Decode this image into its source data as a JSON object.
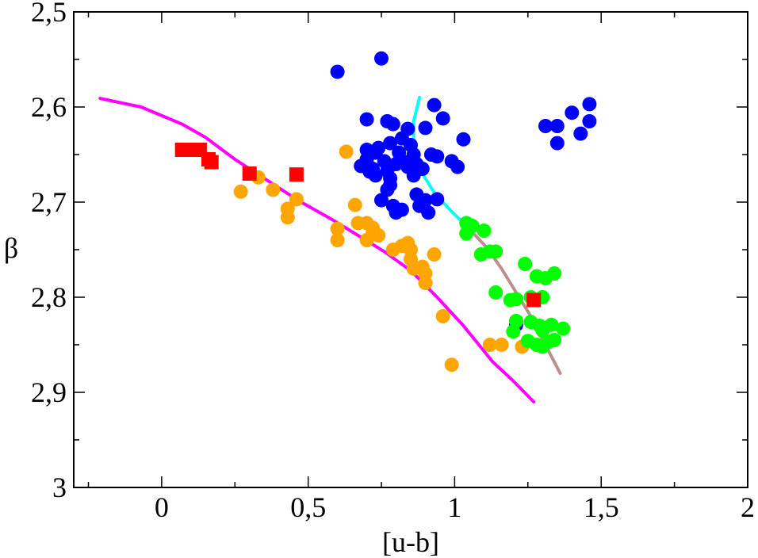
{
  "chart_data": {
    "type": "scatter",
    "title": "",
    "xlabel": "[u-b]",
    "ylabel": "β",
    "xlim": [
      -0.3,
      2.0
    ],
    "ylim": [
      3.0,
      2.5
    ],
    "y_inverted": true,
    "grid": false,
    "xticks": [
      {
        "value": 0,
        "label": "0"
      },
      {
        "value": 0.5,
        "label": "0,5"
      },
      {
        "value": 1,
        "label": "1"
      },
      {
        "value": 1.5,
        "label": "1,5"
      },
      {
        "value": 2,
        "label": "2"
      }
    ],
    "yticks": [
      {
        "value": 2.5,
        "label": "2,5"
      },
      {
        "value": 2.6,
        "label": "2,6"
      },
      {
        "value": 2.7,
        "label": "2,7"
      },
      {
        "value": 2.8,
        "label": "2,8"
      },
      {
        "value": 2.9,
        "label": "2,9"
      },
      {
        "value": 3.0,
        "label": "3"
      }
    ],
    "x_minor_step": 0.25,
    "y_minor_step": 0.05,
    "series": [
      {
        "name": "magenta-line",
        "kind": "line",
        "color": "#ff00ff",
        "points": [
          [
            -0.21,
            2.591
          ],
          [
            -0.07,
            2.6
          ],
          [
            0.07,
            2.618
          ],
          [
            0.15,
            2.632
          ],
          [
            0.25,
            2.655
          ],
          [
            0.36,
            2.677
          ],
          [
            0.47,
            2.699
          ],
          [
            0.58,
            2.718
          ],
          [
            0.67,
            2.735
          ],
          [
            0.76,
            2.752
          ],
          [
            0.85,
            2.772
          ],
          [
            0.94,
            2.8
          ],
          [
            1.03,
            2.83
          ],
          [
            1.13,
            2.868
          ],
          [
            1.2,
            2.888
          ],
          [
            1.27,
            2.91
          ]
        ]
      },
      {
        "name": "cyan-line",
        "kind": "line",
        "color": "#00ffff",
        "points": [
          [
            0.88,
            2.59
          ],
          [
            0.86,
            2.615
          ],
          [
            0.86,
            2.64
          ],
          [
            0.88,
            2.665
          ],
          [
            0.93,
            2.69
          ],
          [
            0.99,
            2.71
          ],
          [
            1.05,
            2.728
          ]
        ]
      },
      {
        "name": "tan-line",
        "kind": "line",
        "color": "#bc8f8f",
        "points": [
          [
            1.05,
            2.728
          ],
          [
            1.11,
            2.748
          ],
          [
            1.16,
            2.77
          ],
          [
            1.21,
            2.795
          ],
          [
            1.26,
            2.82
          ],
          [
            1.3,
            2.845
          ],
          [
            1.33,
            2.862
          ],
          [
            1.36,
            2.88
          ]
        ]
      },
      {
        "name": "blue-circles",
        "kind": "circle",
        "color": "#0000ff",
        "points": [
          [
            0.6,
            2.563
          ],
          [
            0.75,
            2.549
          ],
          [
            0.7,
            2.613
          ],
          [
            0.77,
            2.615
          ],
          [
            0.79,
            2.618
          ],
          [
            0.84,
            2.623
          ],
          [
            0.9,
            2.622
          ],
          [
            0.93,
            2.598
          ],
          [
            0.96,
            2.612
          ],
          [
            0.82,
            2.633
          ],
          [
            0.78,
            2.638
          ],
          [
            0.85,
            2.64
          ],
          [
            0.7,
            2.645
          ],
          [
            0.74,
            2.643
          ],
          [
            0.73,
            2.648
          ],
          [
            0.81,
            2.648
          ],
          [
            0.86,
            2.65
          ],
          [
            0.92,
            2.65
          ],
          [
            0.94,
            2.652
          ],
          [
            0.7,
            2.655
          ],
          [
            0.76,
            2.657
          ],
          [
            0.8,
            2.66
          ],
          [
            0.83,
            2.658
          ],
          [
            0.87,
            2.66
          ],
          [
            0.68,
            2.662
          ],
          [
            0.72,
            2.665
          ],
          [
            0.77,
            2.667
          ],
          [
            0.84,
            2.663
          ],
          [
            0.89,
            2.665
          ],
          [
            0.71,
            2.668
          ],
          [
            0.73,
            2.672
          ],
          [
            0.78,
            2.675
          ],
          [
            0.86,
            2.672
          ],
          [
            0.78,
            2.682
          ],
          [
            0.77,
            2.687
          ],
          [
            0.87,
            2.692
          ],
          [
            0.9,
            2.698
          ],
          [
            0.94,
            2.697
          ],
          [
            0.75,
            2.698
          ],
          [
            0.79,
            2.704
          ],
          [
            0.82,
            2.708
          ],
          [
            0.8,
            2.711
          ],
          [
            0.88,
            2.704
          ],
          [
            0.91,
            2.711
          ],
          [
            0.99,
            2.657
          ],
          [
            1.01,
            2.663
          ],
          [
            1.03,
            2.634
          ],
          [
            1.31,
            2.62
          ],
          [
            1.35,
            2.62
          ],
          [
            1.35,
            2.638
          ],
          [
            1.4,
            2.606
          ],
          [
            1.43,
            2.628
          ],
          [
            1.46,
            2.597
          ],
          [
            1.46,
            2.615
          ],
          [
            1.21,
            2.829
          ]
        ]
      },
      {
        "name": "orange-circles",
        "kind": "circle",
        "color": "#ffa500",
        "points": [
          [
            0.63,
            2.647
          ],
          [
            0.27,
            2.689
          ],
          [
            0.33,
            2.674
          ],
          [
            0.38,
            2.687
          ],
          [
            0.43,
            2.707
          ],
          [
            0.43,
            2.716
          ],
          [
            0.46,
            2.697
          ],
          [
            0.6,
            2.728
          ],
          [
            0.6,
            2.74
          ],
          [
            0.66,
            2.703
          ],
          [
            0.67,
            2.722
          ],
          [
            0.7,
            2.722
          ],
          [
            0.72,
            2.727
          ],
          [
            0.72,
            2.733
          ],
          [
            0.74,
            2.735
          ],
          [
            0.7,
            2.74
          ],
          [
            0.79,
            2.75
          ],
          [
            0.82,
            2.746
          ],
          [
            0.84,
            2.743
          ],
          [
            0.85,
            2.75
          ],
          [
            0.85,
            2.76
          ],
          [
            0.86,
            2.77
          ],
          [
            0.89,
            2.768
          ],
          [
            0.9,
            2.775
          ],
          [
            0.9,
            2.785
          ],
          [
            0.93,
            2.755
          ],
          [
            0.96,
            2.82
          ],
          [
            0.99,
            2.871
          ],
          [
            1.12,
            2.85
          ],
          [
            1.16,
            2.85
          ],
          [
            1.23,
            2.852
          ]
        ]
      },
      {
        "name": "green-circles",
        "kind": "circle",
        "color": "#00ff00",
        "points": [
          [
            1.04,
            2.722
          ],
          [
            1.04,
            2.733
          ],
          [
            1.06,
            2.725
          ],
          [
            1.1,
            2.73
          ],
          [
            1.09,
            2.755
          ],
          [
            1.12,
            2.752
          ],
          [
            1.14,
            2.752
          ],
          [
            1.24,
            2.765
          ],
          [
            1.28,
            2.778
          ],
          [
            1.31,
            2.78
          ],
          [
            1.34,
            2.775
          ],
          [
            1.14,
            2.795
          ],
          [
            1.19,
            2.803
          ],
          [
            1.21,
            2.802
          ],
          [
            1.26,
            2.8
          ],
          [
            1.3,
            2.8
          ],
          [
            1.21,
            2.825
          ],
          [
            1.2,
            2.836
          ],
          [
            1.26,
            2.826
          ],
          [
            1.29,
            2.83
          ],
          [
            1.3,
            2.835
          ],
          [
            1.33,
            2.829
          ],
          [
            1.37,
            2.833
          ],
          [
            1.25,
            2.846
          ],
          [
            1.28,
            2.85
          ],
          [
            1.3,
            2.852
          ],
          [
            1.32,
            2.847
          ],
          [
            1.34,
            2.845
          ]
        ]
      },
      {
        "name": "red-squares",
        "kind": "square",
        "color": "#ff0000",
        "points": [
          [
            0.07,
            2.645
          ],
          [
            0.1,
            2.645
          ],
          [
            0.13,
            2.645
          ],
          [
            0.16,
            2.655
          ],
          [
            0.17,
            2.658
          ],
          [
            0.3,
            2.67
          ],
          [
            0.46,
            2.671
          ],
          [
            1.27,
            2.803
          ]
        ]
      }
    ]
  }
}
